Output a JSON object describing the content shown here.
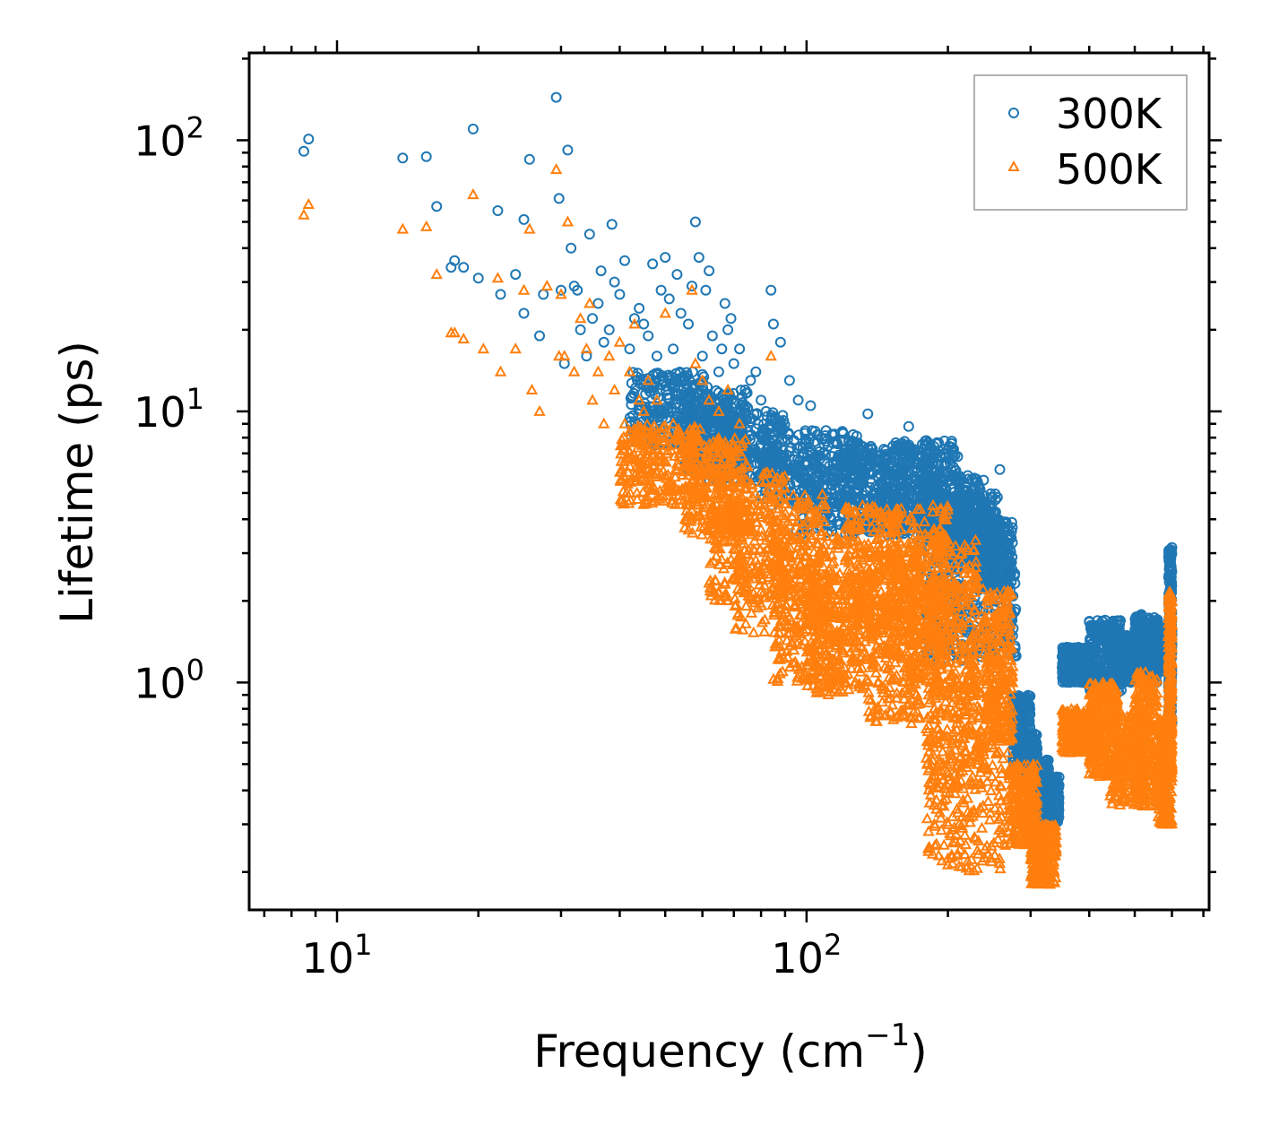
{
  "chart_data": {
    "type": "scatter",
    "title": "",
    "xlabel": "Frequency (cm",
    "xlabel_sup": "−1",
    "xlabel_end": ")",
    "ylabel": "Lifetime (ps)",
    "xscale": "log",
    "yscale": "log",
    "xlim": [
      6.5,
      720
    ],
    "ylim": [
      0.145,
      210
    ],
    "x_ticks": [
      {
        "value": 10,
        "base": "10",
        "exp": "1"
      },
      {
        "value": 100,
        "base": "10",
        "exp": "2"
      }
    ],
    "y_ticks": [
      {
        "value": 1,
        "base": "10",
        "exp": "0"
      },
      {
        "value": 10,
        "base": "10",
        "exp": "1"
      },
      {
        "value": 100,
        "base": "10",
        "exp": "2"
      }
    ],
    "legend_position": "top-right",
    "series": [
      {
        "name": "300K",
        "marker": "circle",
        "color": "#1f77b4",
        "points": [
          [
            8.5,
            91
          ],
          [
            8.7,
            101
          ],
          [
            13.8,
            86
          ],
          [
            15.5,
            87
          ],
          [
            16.3,
            57
          ],
          [
            17.5,
            34
          ],
          [
            17.8,
            36
          ],
          [
            18.6,
            34
          ],
          [
            19.5,
            110
          ],
          [
            20,
            31
          ],
          [
            22,
            55
          ],
          [
            22.3,
            27
          ],
          [
            24,
            32
          ],
          [
            25,
            23
          ],
          [
            25,
            51
          ],
          [
            25.7,
            85
          ],
          [
            27,
            19
          ],
          [
            27.5,
            27
          ],
          [
            29.3,
            144
          ],
          [
            29.7,
            61
          ],
          [
            30,
            28
          ],
          [
            30.5,
            15
          ],
          [
            31,
            92
          ],
          [
            31.5,
            40
          ],
          [
            32,
            29
          ],
          [
            32.5,
            28
          ],
          [
            33,
            20
          ],
          [
            34,
            16
          ],
          [
            34.5,
            45
          ],
          [
            35,
            22
          ],
          [
            36,
            25
          ],
          [
            36.5,
            33
          ],
          [
            37,
            18
          ],
          [
            38,
            20
          ],
          [
            38.5,
            49
          ],
          [
            39,
            30
          ],
          [
            40,
            27
          ],
          [
            41,
            36
          ],
          [
            42,
            17
          ],
          [
            43,
            22
          ],
          [
            44,
            24
          ],
          [
            45,
            21
          ],
          [
            46,
            19
          ],
          [
            47,
            35
          ],
          [
            48,
            16
          ],
          [
            49,
            28
          ],
          [
            50,
            37
          ],
          [
            51,
            26
          ],
          [
            52,
            17
          ],
          [
            53,
            32
          ],
          [
            54,
            23
          ],
          [
            55,
            13
          ],
          [
            56,
            21
          ],
          [
            57,
            29
          ],
          [
            58,
            50
          ],
          [
            59,
            37
          ],
          [
            60,
            16
          ],
          [
            61,
            28
          ],
          [
            62,
            33
          ],
          [
            63,
            19
          ],
          [
            64,
            11
          ],
          [
            65,
            14
          ],
          [
            66,
            17
          ],
          [
            67,
            25
          ],
          [
            68,
            20
          ],
          [
            69,
            22
          ],
          [
            70,
            15
          ],
          [
            72,
            17
          ],
          [
            74,
            12
          ],
          [
            76,
            13
          ],
          [
            78,
            14
          ],
          [
            80,
            11
          ],
          [
            82,
            10
          ],
          [
            84,
            28
          ],
          [
            85,
            21
          ],
          [
            88,
            18
          ],
          [
            92,
            13
          ],
          [
            96,
            11
          ],
          [
            102,
            10.5
          ],
          [
            110,
            8.5
          ],
          [
            135,
            9.8
          ],
          [
            165,
            8.8
          ],
          [
            180,
            7.8
          ],
          [
            190,
            7
          ],
          [
            198,
            6.8
          ],
          [
            258,
            6.1
          ]
        ],
        "bands": [
          {
            "x": [
              42,
              62
            ],
            "y": [
              7.5,
              14
            ]
          },
          {
            "x": [
              55,
              75
            ],
            "y": [
              6,
              12
            ]
          },
          {
            "x": [
              62,
              90
            ],
            "y": [
              5.5,
              10
            ]
          },
          {
            "x": [
              80,
              130
            ],
            "y": [
              4.5,
              8.5
            ]
          },
          {
            "x": [
              95,
              150
            ],
            "y": [
              3.5,
              7
            ]
          },
          {
            "x": [
              120,
              190
            ],
            "y": [
              3.5,
              7.5
            ]
          },
          {
            "x": [
              150,
              210
            ],
            "y": [
              3.8,
              7.8
            ]
          },
          {
            "x": [
              175,
              240
            ],
            "y": [
              3.2,
              5.8
            ]
          },
          {
            "x": [
              200,
              255
            ],
            "y": [
              2.8,
              5.0
            ]
          },
          {
            "x": [
              230,
              275
            ],
            "y": [
              2.2,
              4.0
            ]
          },
          {
            "x": [
              180,
              280
            ],
            "y": [
              1.2,
              3.0
            ]
          },
          {
            "x": [
              275,
              300
            ],
            "y": [
              0.45,
              0.9
            ]
          },
          {
            "x": [
              285,
              310
            ],
            "y": [
              0.4,
              0.65
            ]
          },
          {
            "x": [
              300,
              330
            ],
            "y": [
              0.34,
              0.52
            ]
          },
          {
            "x": [
              315,
              345
            ],
            "y": [
              0.3,
              0.45
            ]
          },
          {
            "x": [
              350,
              400
            ],
            "y": [
              1.0,
              1.35
            ]
          },
          {
            "x": [
              400,
              470
            ],
            "y": [
              0.9,
              1.7
            ]
          },
          {
            "x": [
              450,
              520
            ],
            "y": [
              1.0,
              1.5
            ]
          },
          {
            "x": [
              500,
              560
            ],
            "y": [
              1.0,
              1.8
            ]
          },
          {
            "x": [
              540,
              590
            ],
            "y": [
              1.1,
              1.6
            ]
          },
          {
            "x": [
              590,
              600
            ],
            "y": [
              0.7,
              3.2
            ]
          }
        ]
      },
      {
        "name": "500K",
        "marker": "triangle",
        "color": "#ff7f0e",
        "points": [
          [
            8.5,
            53
          ],
          [
            8.7,
            58
          ],
          [
            13.8,
            47
          ],
          [
            15.5,
            48
          ],
          [
            16.3,
            32
          ],
          [
            17.5,
            19.5
          ],
          [
            17.8,
            19.5
          ],
          [
            18.6,
            18.5
          ],
          [
            19.5,
            63
          ],
          [
            20.5,
            17
          ],
          [
            22,
            31
          ],
          [
            22.3,
            14
          ],
          [
            24,
            17
          ],
          [
            25,
            28
          ],
          [
            25.7,
            47
          ],
          [
            26,
            12
          ],
          [
            27,
            10
          ],
          [
            28,
            29
          ],
          [
            29.3,
            78
          ],
          [
            29.7,
            16
          ],
          [
            30,
            27
          ],
          [
            30.5,
            16
          ],
          [
            31,
            50
          ],
          [
            32,
            14
          ],
          [
            33,
            22
          ],
          [
            34,
            17
          ],
          [
            34.5,
            25
          ],
          [
            35,
            11
          ],
          [
            36,
            14
          ],
          [
            37,
            9
          ],
          [
            38,
            16
          ],
          [
            39,
            12
          ],
          [
            40,
            18
          ],
          [
            41,
            9
          ],
          [
            42,
            14
          ],
          [
            43,
            21
          ],
          [
            44,
            11
          ],
          [
            45,
            10
          ],
          [
            46,
            13
          ],
          [
            47,
            8
          ],
          [
            48,
            11
          ],
          [
            50,
            23
          ],
          [
            52,
            9
          ],
          [
            55,
            6
          ],
          [
            57,
            28
          ],
          [
            58,
            15
          ],
          [
            60,
            13
          ],
          [
            62,
            11
          ],
          [
            65,
            10
          ],
          [
            68,
            12
          ],
          [
            72,
            9
          ],
          [
            84,
            16
          ]
        ],
        "bands": [
          {
            "x": [
              40,
              60
            ],
            "y": [
              4.5,
              9
            ]
          },
          {
            "x": [
              55,
              75
            ],
            "y": [
              3.5,
              8
            ]
          },
          {
            "x": [
              62,
              90
            ],
            "y": [
              2.0,
              6
            ]
          },
          {
            "x": [
              70,
              110
            ],
            "y": [
              1.5,
              5
            ]
          },
          {
            "x": [
              85,
              120
            ],
            "y": [
              1.0,
              3.5
            ]
          },
          {
            "x": [
              100,
              135
            ],
            "y": [
              0.9,
              2.5
            ]
          },
          {
            "x": [
              120,
              160
            ],
            "y": [
              1.5,
              4.5
            ]
          },
          {
            "x": [
              135,
              175
            ],
            "y": [
              0.7,
              3.0
            ]
          },
          {
            "x": [
              150,
              200
            ],
            "y": [
              1.2,
              4.5
            ]
          },
          {
            "x": [
              165,
              230
            ],
            "y": [
              0.9,
              3.5
            ]
          },
          {
            "x": [
              180,
              240
            ],
            "y": [
              0.4,
              2.5
            ]
          },
          {
            "x": [
              180,
              270
            ],
            "y": [
              0.2,
              1.0
            ]
          },
          {
            "x": [
              240,
              275
            ],
            "y": [
              0.6,
              2.2
            ]
          },
          {
            "x": [
              270,
              310
            ],
            "y": [
              0.25,
              0.5
            ]
          },
          {
            "x": [
              300,
              340
            ],
            "y": [
              0.18,
              0.3
            ]
          },
          {
            "x": [
              350,
              420
            ],
            "y": [
              0.55,
              0.8
            ]
          },
          {
            "x": [
              400,
              460
            ],
            "y": [
              0.45,
              1.0
            ]
          },
          {
            "x": [
              440,
              530
            ],
            "y": [
              0.35,
              0.8
            ]
          },
          {
            "x": [
              500,
              560
            ],
            "y": [
              0.35,
              1.1
            ]
          },
          {
            "x": [
              560,
              600
            ],
            "y": [
              0.3,
              0.75
            ]
          },
          {
            "x": [
              590,
              600
            ],
            "y": [
              0.5,
              2.2
            ]
          }
        ]
      }
    ]
  }
}
